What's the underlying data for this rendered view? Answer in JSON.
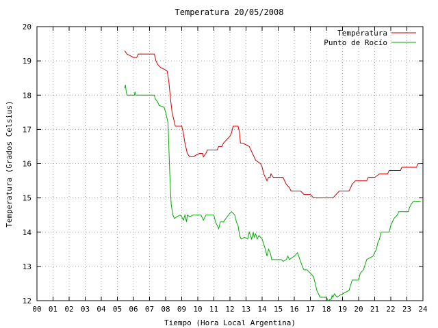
{
  "chart_data": {
    "type": "line",
    "title": "Temperatura 20/05/2008",
    "xlabel": "Tiempo (Hora Local Argentina)",
    "ylabel": "Temperatura (Grados Celsius)",
    "xlim": [
      0,
      24
    ],
    "ylim": [
      12,
      20
    ],
    "x_ticks": [
      "00",
      "01",
      "02",
      "03",
      "04",
      "05",
      "06",
      "07",
      "08",
      "09",
      "10",
      "11",
      "12",
      "13",
      "14",
      "15",
      "16",
      "17",
      "18",
      "19",
      "20",
      "21",
      "22",
      "23",
      "24"
    ],
    "y_ticks": [
      "12",
      "13",
      "14",
      "15",
      "16",
      "17",
      "18",
      "19",
      "20"
    ],
    "grid": true,
    "legend_position": "top-right",
    "series": [
      {
        "name": "Temperatura",
        "color": "#cc0000",
        "points": [
          [
            5.45,
            19.3
          ],
          [
            5.6,
            19.2
          ],
          [
            5.8,
            19.15
          ],
          [
            6.0,
            19.1
          ],
          [
            6.2,
            19.1
          ],
          [
            6.3,
            19.2
          ],
          [
            6.6,
            19.2
          ],
          [
            7.0,
            19.2
          ],
          [
            7.3,
            19.2
          ],
          [
            7.4,
            19.0
          ],
          [
            7.5,
            18.9
          ],
          [
            7.7,
            18.8
          ],
          [
            7.95,
            18.75
          ],
          [
            8.1,
            18.7
          ],
          [
            8.2,
            18.4
          ],
          [
            8.3,
            17.9
          ],
          [
            8.4,
            17.5
          ],
          [
            8.6,
            17.1
          ],
          [
            9.0,
            17.1
          ],
          [
            9.1,
            16.9
          ],
          [
            9.2,
            16.6
          ],
          [
            9.35,
            16.3
          ],
          [
            9.5,
            16.2
          ],
          [
            9.7,
            16.2
          ],
          [
            9.9,
            16.25
          ],
          [
            10.1,
            16.3
          ],
          [
            10.3,
            16.3
          ],
          [
            10.35,
            16.2
          ],
          [
            10.5,
            16.3
          ],
          [
            10.6,
            16.4
          ],
          [
            10.8,
            16.4
          ],
          [
            11.0,
            16.4
          ],
          [
            11.2,
            16.4
          ],
          [
            11.3,
            16.5
          ],
          [
            11.5,
            16.5
          ],
          [
            11.6,
            16.6
          ],
          [
            11.8,
            16.7
          ],
          [
            12.0,
            16.8
          ],
          [
            12.1,
            16.9
          ],
          [
            12.2,
            17.1
          ],
          [
            12.5,
            17.1
          ],
          [
            12.6,
            16.9
          ],
          [
            12.65,
            16.6
          ],
          [
            12.8,
            16.6
          ],
          [
            13.2,
            16.5
          ],
          [
            13.4,
            16.3
          ],
          [
            13.6,
            16.1
          ],
          [
            13.9,
            16.0
          ],
          [
            14.0,
            15.9
          ],
          [
            14.1,
            15.7
          ],
          [
            14.2,
            15.6
          ],
          [
            14.3,
            15.5
          ],
          [
            14.4,
            15.6
          ],
          [
            14.5,
            15.6
          ],
          [
            14.55,
            15.7
          ],
          [
            14.7,
            15.6
          ],
          [
            15.3,
            15.6
          ],
          [
            15.5,
            15.4
          ],
          [
            15.7,
            15.3
          ],
          [
            15.8,
            15.2
          ],
          [
            16.4,
            15.2
          ],
          [
            16.6,
            15.1
          ],
          [
            17.0,
            15.1
          ],
          [
            17.2,
            15.0
          ],
          [
            18.4,
            15.0
          ],
          [
            18.6,
            15.1
          ],
          [
            18.8,
            15.2
          ],
          [
            19.4,
            15.2
          ],
          [
            19.5,
            15.3
          ],
          [
            19.6,
            15.4
          ],
          [
            19.8,
            15.5
          ],
          [
            20.5,
            15.5
          ],
          [
            20.6,
            15.6
          ],
          [
            21.0,
            15.6
          ],
          [
            21.3,
            15.7
          ],
          [
            21.8,
            15.7
          ],
          [
            21.9,
            15.8
          ],
          [
            22.6,
            15.8
          ],
          [
            22.7,
            15.9
          ],
          [
            23.6,
            15.9
          ],
          [
            23.7,
            16.0
          ],
          [
            23.85,
            16.0
          ]
        ]
      },
      {
        "name": "Punto de Rocío",
        "color": "#00aa00",
        "points": [
          [
            5.45,
            18.2
          ],
          [
            5.5,
            18.3
          ],
          [
            5.55,
            18.1
          ],
          [
            5.6,
            18.0
          ],
          [
            6.05,
            18.0
          ],
          [
            6.1,
            18.1
          ],
          [
            6.15,
            18.0
          ],
          [
            7.3,
            18.0
          ],
          [
            7.35,
            17.9
          ],
          [
            7.5,
            17.8
          ],
          [
            7.6,
            17.7
          ],
          [
            7.9,
            17.65
          ],
          [
            8.0,
            17.5
          ],
          [
            8.1,
            17.3
          ],
          [
            8.15,
            17.2
          ],
          [
            8.2,
            16.5
          ],
          [
            8.25,
            15.8
          ],
          [
            8.3,
            15.2
          ],
          [
            8.35,
            14.8
          ],
          [
            8.45,
            14.5
          ],
          [
            8.55,
            14.4
          ],
          [
            8.7,
            14.45
          ],
          [
            8.9,
            14.5
          ],
          [
            9.0,
            14.45
          ],
          [
            9.1,
            14.35
          ],
          [
            9.2,
            14.5
          ],
          [
            9.3,
            14.3
          ],
          [
            9.35,
            14.5
          ],
          [
            9.5,
            14.45
          ],
          [
            9.7,
            14.5
          ],
          [
            9.85,
            14.5
          ],
          [
            10.0,
            14.5
          ],
          [
            10.2,
            14.5
          ],
          [
            10.35,
            14.35
          ],
          [
            10.5,
            14.5
          ],
          [
            10.8,
            14.5
          ],
          [
            11.0,
            14.5
          ],
          [
            11.1,
            14.3
          ],
          [
            11.2,
            14.2
          ],
          [
            11.3,
            14.1
          ],
          [
            11.4,
            14.3
          ],
          [
            11.6,
            14.3
          ],
          [
            11.75,
            14.4
          ],
          [
            11.9,
            14.5
          ],
          [
            12.1,
            14.6
          ],
          [
            12.3,
            14.5
          ],
          [
            12.4,
            14.3
          ],
          [
            12.5,
            14.2
          ],
          [
            12.6,
            13.9
          ],
          [
            12.7,
            13.8
          ],
          [
            12.9,
            13.85
          ],
          [
            13.1,
            13.8
          ],
          [
            13.2,
            14.0
          ],
          [
            13.35,
            13.8
          ],
          [
            13.45,
            14.0
          ],
          [
            13.5,
            13.85
          ],
          [
            13.6,
            13.95
          ],
          [
            13.7,
            13.8
          ],
          [
            13.8,
            13.9
          ],
          [
            14.0,
            13.8
          ],
          [
            14.2,
            13.5
          ],
          [
            14.3,
            13.3
          ],
          [
            14.4,
            13.5
          ],
          [
            14.5,
            13.4
          ],
          [
            14.6,
            13.2
          ],
          [
            15.2,
            13.2
          ],
          [
            15.3,
            13.15
          ],
          [
            15.5,
            13.2
          ],
          [
            15.6,
            13.3
          ],
          [
            15.7,
            13.2
          ],
          [
            16.0,
            13.3
          ],
          [
            16.2,
            13.4
          ],
          [
            16.35,
            13.2
          ],
          [
            16.5,
            13.0
          ],
          [
            16.6,
            12.9
          ],
          [
            16.8,
            12.9
          ],
          [
            17.0,
            12.8
          ],
          [
            17.2,
            12.7
          ],
          [
            17.3,
            12.5
          ],
          [
            17.4,
            12.3
          ],
          [
            17.5,
            12.2
          ],
          [
            17.6,
            12.1
          ],
          [
            18.0,
            12.1
          ],
          [
            18.1,
            12.0
          ],
          [
            18.3,
            12.05
          ],
          [
            18.35,
            12.15
          ],
          [
            18.4,
            12.1
          ],
          [
            18.5,
            12.2
          ],
          [
            18.65,
            12.1
          ],
          [
            18.8,
            12.15
          ],
          [
            19.0,
            12.2
          ],
          [
            19.2,
            12.25
          ],
          [
            19.4,
            12.3
          ],
          [
            19.5,
            12.45
          ],
          [
            19.6,
            12.6
          ],
          [
            20.0,
            12.6
          ],
          [
            20.1,
            12.8
          ],
          [
            20.3,
            12.9
          ],
          [
            20.5,
            13.2
          ],
          [
            20.9,
            13.3
          ],
          [
            21.0,
            13.4
          ],
          [
            21.1,
            13.5
          ],
          [
            21.2,
            13.7
          ],
          [
            21.3,
            13.8
          ],
          [
            21.4,
            14.0
          ],
          [
            21.9,
            14.0
          ],
          [
            22.0,
            14.2
          ],
          [
            22.2,
            14.4
          ],
          [
            22.4,
            14.5
          ],
          [
            22.5,
            14.6
          ],
          [
            23.1,
            14.6
          ],
          [
            23.15,
            14.7
          ],
          [
            23.25,
            14.8
          ],
          [
            23.4,
            14.9
          ],
          [
            23.85,
            14.9
          ]
        ]
      }
    ]
  }
}
